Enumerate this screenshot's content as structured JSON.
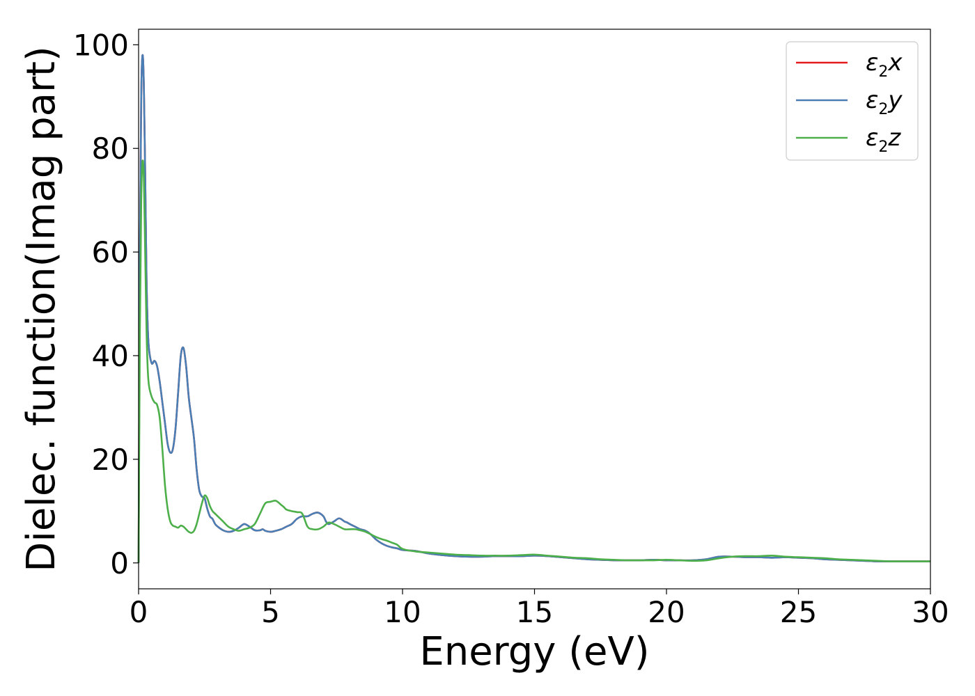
{
  "chart_data": {
    "type": "line",
    "xlabel": "Energy (eV)",
    "ylabel": "Dielec. function(Imag part)",
    "xlim": [
      0,
      30
    ],
    "ylim": [
      -5,
      103
    ],
    "xticks": [
      0,
      5,
      10,
      15,
      20,
      25,
      30
    ],
    "yticks": [
      0,
      20,
      40,
      60,
      80,
      100
    ],
    "grid": false,
    "legend_position": "top-right",
    "series": [
      {
        "name": "ε2x",
        "legend": {
          "symbol": "ε",
          "sub": "2",
          "axis": "x"
        },
        "color": "#e41a1c",
        "x": [
          0,
          0.05,
          0.1,
          0.15,
          0.2,
          0.25,
          0.3,
          0.35,
          0.4,
          0.5,
          0.6,
          0.7,
          0.8,
          0.9,
          1.0,
          1.1,
          1.2,
          1.3,
          1.4,
          1.5,
          1.6,
          1.7,
          1.8,
          1.9,
          2.0,
          2.1,
          2.2,
          2.3,
          2.4,
          2.5,
          2.6,
          2.7,
          2.8,
          2.9,
          3.0,
          3.2,
          3.4,
          3.6,
          3.8,
          4.0,
          4.2,
          4.4,
          4.6,
          4.7,
          4.8,
          5.0,
          5.2,
          5.4,
          5.6,
          5.8,
          6.0,
          6.2,
          6.4,
          6.6,
          6.8,
          7.0,
          7.1,
          7.2,
          7.4,
          7.6,
          7.8,
          7.9,
          8.0,
          8.2,
          8.4,
          8.6,
          8.8,
          9.0,
          9.2,
          9.4,
          9.6,
          9.8,
          10.0,
          10.5,
          11.0,
          11.5,
          12.0,
          12.5,
          13.0,
          13.5,
          14.0,
          14.5,
          15.0,
          15.5,
          16.0,
          16.5,
          17.0,
          17.5,
          18.0,
          18.5,
          19.0,
          19.5,
          20.0,
          20.5,
          21.0,
          21.5,
          22.0,
          22.5,
          23.0,
          23.5,
          24.0,
          24.5,
          25.0,
          25.5,
          26.0,
          26.5,
          27.0,
          27.5,
          28.0,
          28.5,
          29.0,
          29.5,
          30.0
        ],
        "y": [
          0,
          60,
          90,
          98,
          92,
          75,
          55,
          45,
          41,
          38.5,
          39,
          38,
          35,
          31,
          27,
          23,
          21.3,
          22,
          26,
          33,
          40,
          41.5,
          38,
          32,
          28,
          24,
          18,
          14,
          12.8,
          12.5,
          10.5,
          9,
          8.5,
          7.5,
          7,
          6.3,
          6,
          6.2,
          6.8,
          7.5,
          7,
          6.3,
          6.3,
          6.5,
          6.2,
          6,
          6.2,
          6.5,
          7,
          7.5,
          8.5,
          9,
          9,
          9.5,
          9.7,
          9,
          8,
          7.5,
          8,
          8.6,
          8,
          7.8,
          7.5,
          7,
          6.5,
          6.2,
          5.5,
          4.5,
          3.8,
          3.3,
          3,
          2.8,
          2.5,
          2.3,
          1.8,
          1.5,
          1.3,
          1.2,
          1.2,
          1.3,
          1.3,
          1.3,
          1.4,
          1.3,
          1.1,
          0.9,
          0.7,
          0.6,
          0.5,
          0.5,
          0.5,
          0.6,
          0.5,
          0.5,
          0.5,
          0.7,
          1.2,
          1.2,
          1.1,
          1.1,
          1.0,
          1.1,
          1.0,
          0.9,
          0.7,
          0.6,
          0.5,
          0.4,
          0.3,
          0.3,
          0.3,
          0.3,
          0.3
        ]
      },
      {
        "name": "ε2y",
        "legend": {
          "symbol": "ε",
          "sub": "2",
          "axis": "y"
        },
        "color": "#4a7fb5",
        "x": [
          0,
          0.05,
          0.1,
          0.15,
          0.2,
          0.25,
          0.3,
          0.35,
          0.4,
          0.5,
          0.6,
          0.7,
          0.8,
          0.9,
          1.0,
          1.1,
          1.2,
          1.3,
          1.4,
          1.5,
          1.6,
          1.7,
          1.8,
          1.9,
          2.0,
          2.1,
          2.2,
          2.3,
          2.4,
          2.5,
          2.6,
          2.7,
          2.8,
          2.9,
          3.0,
          3.2,
          3.4,
          3.6,
          3.8,
          4.0,
          4.2,
          4.4,
          4.6,
          4.7,
          4.8,
          5.0,
          5.2,
          5.4,
          5.6,
          5.8,
          6.0,
          6.2,
          6.4,
          6.6,
          6.8,
          7.0,
          7.1,
          7.2,
          7.4,
          7.6,
          7.8,
          7.9,
          8.0,
          8.2,
          8.4,
          8.6,
          8.8,
          9.0,
          9.2,
          9.4,
          9.6,
          9.8,
          10.0,
          10.5,
          11.0,
          11.5,
          12.0,
          12.5,
          13.0,
          13.5,
          14.0,
          14.5,
          15.0,
          15.5,
          16.0,
          16.5,
          17.0,
          17.5,
          18.0,
          18.5,
          19.0,
          19.5,
          20.0,
          20.5,
          21.0,
          21.5,
          22.0,
          22.5,
          23.0,
          23.5,
          24.0,
          24.5,
          25.0,
          25.5,
          26.0,
          26.5,
          27.0,
          27.5,
          28.0,
          28.5,
          29.0,
          29.5,
          30.0
        ],
        "y": [
          0,
          60,
          90,
          98,
          92,
          75,
          55,
          45,
          41,
          38.5,
          39,
          38,
          35,
          31,
          27,
          23,
          21.3,
          22,
          26,
          33,
          40,
          41.5,
          38,
          32,
          28,
          24,
          18,
          14,
          12.8,
          12.5,
          10.5,
          9,
          8.5,
          7.5,
          7,
          6.3,
          6,
          6.2,
          6.8,
          7.5,
          7,
          6.3,
          6.3,
          6.5,
          6.2,
          6,
          6.2,
          6.5,
          7,
          7.5,
          8.5,
          9,
          9,
          9.5,
          9.7,
          9,
          8,
          7.5,
          8,
          8.6,
          8,
          7.8,
          7.5,
          7,
          6.5,
          6.2,
          5.5,
          4.5,
          3.8,
          3.3,
          3,
          2.8,
          2.5,
          2.3,
          1.8,
          1.5,
          1.3,
          1.2,
          1.2,
          1.3,
          1.3,
          1.3,
          1.4,
          1.3,
          1.1,
          0.9,
          0.7,
          0.6,
          0.5,
          0.5,
          0.5,
          0.6,
          0.5,
          0.5,
          0.5,
          0.7,
          1.2,
          1.2,
          1.1,
          1.1,
          1.0,
          1.1,
          1.0,
          0.9,
          0.7,
          0.6,
          0.5,
          0.4,
          0.3,
          0.3,
          0.3,
          0.3,
          0.3
        ]
      },
      {
        "name": "ε2z",
        "legend": {
          "symbol": "ε",
          "sub": "2",
          "axis": "z"
        },
        "color": "#4daf4a",
        "x": [
          0,
          0.05,
          0.1,
          0.15,
          0.2,
          0.25,
          0.3,
          0.35,
          0.4,
          0.5,
          0.6,
          0.7,
          0.8,
          0.9,
          1.0,
          1.1,
          1.2,
          1.3,
          1.4,
          1.5,
          1.6,
          1.7,
          1.8,
          1.9,
          2.0,
          2.1,
          2.2,
          2.3,
          2.4,
          2.5,
          2.6,
          2.7,
          2.8,
          2.9,
          3.0,
          3.2,
          3.4,
          3.6,
          3.8,
          4.0,
          4.2,
          4.4,
          4.6,
          4.8,
          5.0,
          5.2,
          5.4,
          5.5,
          5.6,
          5.8,
          6.0,
          6.2,
          6.4,
          6.6,
          6.8,
          7.0,
          7.2,
          7.4,
          7.6,
          7.8,
          8.0,
          8.2,
          8.4,
          8.6,
          8.8,
          9.0,
          9.2,
          9.4,
          9.6,
          9.8,
          10.0,
          10.5,
          11.0,
          11.5,
          12.0,
          12.5,
          13.0,
          13.5,
          14.0,
          14.5,
          15.0,
          15.5,
          16.0,
          16.5,
          17.0,
          17.5,
          18.0,
          18.5,
          19.0,
          19.5,
          20.0,
          20.5,
          21.0,
          21.5,
          22.0,
          22.5,
          23.0,
          23.5,
          24.0,
          24.5,
          25.0,
          25.5,
          26.0,
          26.5,
          27.0,
          27.5,
          28.0,
          28.5,
          29.0,
          29.5,
          30.0
        ],
        "y": [
          0,
          45,
          70,
          77.5,
          74,
          60,
          45,
          37,
          34,
          32,
          31,
          30.5,
          28,
          22,
          15,
          10.5,
          8,
          7.2,
          7,
          6.8,
          7.2,
          7,
          6.5,
          6,
          5.8,
          6.2,
          7.5,
          9.5,
          11.5,
          13,
          12.5,
          11,
          10,
          9.5,
          9,
          8,
          7,
          6.5,
          6.2,
          6.5,
          6.8,
          7.5,
          9.5,
          11.5,
          11.8,
          12,
          11.2,
          10.8,
          10.3,
          10,
          9.8,
          9.5,
          7,
          6.5,
          6.5,
          7,
          7.8,
          7.5,
          7,
          6.5,
          6.5,
          6.5,
          6.3,
          6,
          5.5,
          5,
          4.6,
          4.3,
          3.9,
          3.5,
          2.7,
          2.2,
          2.0,
          1.8,
          1.6,
          1.5,
          1.4,
          1.4,
          1.4,
          1.5,
          1.6,
          1.4,
          1.2,
          1.0,
          0.9,
          0.7,
          0.6,
          0.5,
          0.5,
          0.5,
          0.6,
          0.5,
          0.4,
          0.5,
          0.9,
          1.2,
          1.3,
          1.3,
          1.4,
          1.2,
          1.1,
          1.0,
          0.9,
          0.7,
          0.6,
          0.5,
          0.4,
          0.3,
          0.3,
          0.3,
          0.3
        ]
      }
    ]
  }
}
